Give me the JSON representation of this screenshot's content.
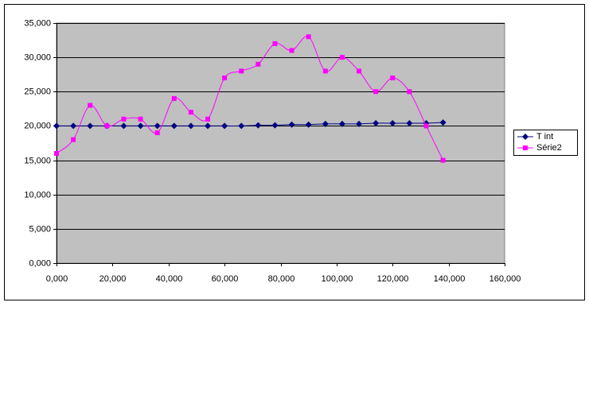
{
  "chart_data": {
    "type": "line",
    "x": [
      0,
      6,
      12,
      18,
      24,
      30,
      36,
      42,
      48,
      54,
      60,
      66,
      72,
      78,
      84,
      90,
      96,
      102,
      108,
      114,
      120,
      126,
      132,
      138
    ],
    "series": [
      {
        "name": "T int",
        "color": "#000080",
        "marker": "diamond",
        "values": [
          20,
          20,
          20,
          20,
          20,
          20,
          20,
          20,
          20,
          20,
          20,
          20,
          20.1,
          20.1,
          20.2,
          20.2,
          20.3,
          20.3,
          20.3,
          20.4,
          20.4,
          20.4,
          20.4,
          20.5
        ]
      },
      {
        "name": "Série2",
        "color": "#ff00ff",
        "marker": "square",
        "values": [
          16,
          18,
          23,
          20,
          21,
          21,
          19,
          24,
          22,
          21,
          27,
          28,
          29,
          32,
          31,
          33,
          28,
          30,
          28,
          25,
          27,
          25,
          20,
          15
        ]
      }
    ],
    "xlim": [
      0,
      160
    ],
    "xticks": [
      {
        "value": 0,
        "label": "0,000"
      },
      {
        "value": 20,
        "label": "20,000"
      },
      {
        "value": 40,
        "label": "40,000"
      },
      {
        "value": 60,
        "label": "60,000"
      },
      {
        "value": 80,
        "label": "80,000"
      },
      {
        "value": 100,
        "label": "100,000"
      },
      {
        "value": 120,
        "label": "120,000"
      },
      {
        "value": 140,
        "label": "140,000"
      },
      {
        "value": 160,
        "label": "160,000"
      }
    ],
    "ylim": [
      0,
      35
    ],
    "yticks": [
      {
        "value": 0,
        "label": "0,000"
      },
      {
        "value": 5,
        "label": "5,000"
      },
      {
        "value": 10,
        "label": "10,000"
      },
      {
        "value": 15,
        "label": "15,000"
      },
      {
        "value": 20,
        "label": "20,000"
      },
      {
        "value": 25,
        "label": "25,000"
      },
      {
        "value": 30,
        "label": "30,000"
      },
      {
        "value": 35,
        "label": "35,000"
      }
    ],
    "grid": true,
    "smooth": true,
    "plot_background": "#c0c0c0",
    "legend": "right"
  }
}
